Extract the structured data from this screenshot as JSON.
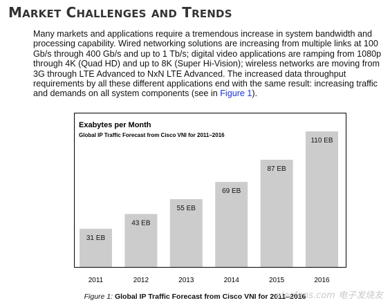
{
  "header": {
    "title_parts": [
      {
        "cap": "M",
        "rest": "ARKET"
      },
      {
        "cap": "C",
        "rest": "HALLENGES"
      },
      {
        "cap": "",
        "rest": "AND",
        "small_only": true
      },
      {
        "cap": "T",
        "rest": "RENDS"
      }
    ]
  },
  "paragraph": {
    "text_before_link": "Many markets and applications require a tremendous increase in system bandwidth and processing capability. Wired networking solutions are increasing from multiple links at 100 Gb/s through 400 Gb/s and up to 1 Tb/s; digital video applications are ramping from 1080p through 4K (Quad HD) and up to 8K (Super Hi-Vision); wireless networks are moving from 3G through LTE Advanced to NxN LTE Advanced. The increased data throughput requirements by all these different applications end with the same result: increasing traffic and demands on all system components (see in ",
    "link_text": "Figure 1",
    "text_after_link": ")."
  },
  "chart_data": {
    "type": "bar",
    "title": "Exabytes per Month",
    "subtitle": "Global IP Traffic Forecast from Cisco VNI for 2011–2016",
    "categories": [
      "2011",
      "2012",
      "2013",
      "2014",
      "2015",
      "2016"
    ],
    "values": [
      31,
      43,
      55,
      69,
      87,
      110
    ],
    "data_labels": [
      "31 EB",
      "43 EB",
      "55 EB",
      "69 EB",
      "87 EB",
      "110 EB"
    ],
    "ylim": [
      0,
      110
    ],
    "bar_color": "#cccccc",
    "grid": false,
    "legend": "none"
  },
  "caption": {
    "label": "Figure 1:",
    "text": "Global IP Traffic Forecast from Cisco VNI for 2011–2016"
  },
  "watermark": {
    "text": "elecfans.com 电子发烧友"
  }
}
